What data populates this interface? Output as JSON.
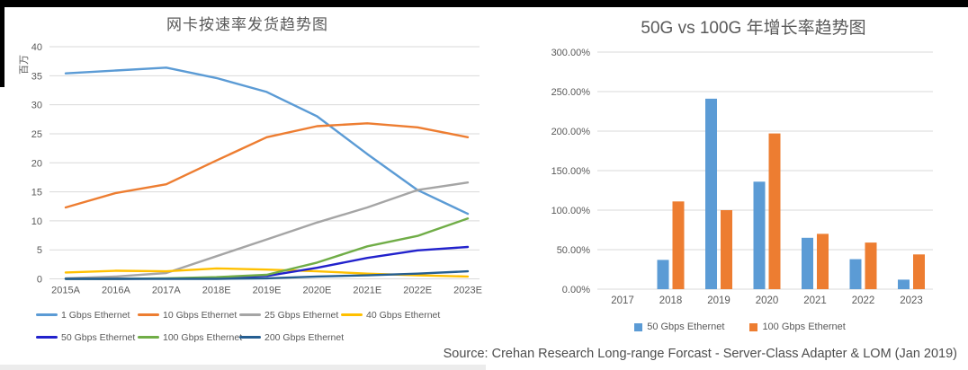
{
  "page": {
    "source_note": "Source: Crehan Research Long-range Forcast - Server-Class Adapter & LOM (Jan 2019)"
  },
  "colors": {
    "grid": "#d9d9d9",
    "axis_text": "#595959",
    "title_text": "#595959",
    "blue_light": "#5B9BD5",
    "orange": "#ED7D31",
    "gray": "#A5A5A5",
    "gold": "#FFC000",
    "blue_deep": "#2222CC",
    "green": "#70AD47",
    "teal_dark": "#255E91"
  },
  "chart_data": [
    {
      "type": "line",
      "title": "网卡按速率发货趋势图",
      "ylabel": "百万",
      "xlabel": "",
      "categories": [
        "2015A",
        "2016A",
        "2017A",
        "2018E",
        "2019E",
        "2020E",
        "2021E",
        "2022E",
        "2023E"
      ],
      "yticks": [
        0,
        5,
        10,
        15,
        20,
        25,
        30,
        35,
        40
      ],
      "ylim": [
        0,
        40
      ],
      "grid": true,
      "legend_position": "bottom-left",
      "series": [
        {
          "name": "1 Gbps Ethernet",
          "color": "#5B9BD5",
          "values": [
            35.4,
            35.9,
            36.4,
            34.6,
            32.2,
            28.0,
            21.5,
            15.3,
            11.2
          ]
        },
        {
          "name": "10 Gbps Ethernet",
          "color": "#ED7D31",
          "values": [
            12.3,
            14.8,
            16.3,
            20.4,
            24.4,
            26.3,
            26.8,
            26.1,
            24.4
          ]
        },
        {
          "name": "25 Gbps Ethernet",
          "color": "#A5A5A5",
          "values": [
            0.1,
            0.4,
            1.0,
            3.9,
            6.8,
            9.7,
            12.3,
            15.3,
            16.6
          ]
        },
        {
          "name": "40 Gbps Ethernet",
          "color": "#FFC000",
          "values": [
            1.1,
            1.4,
            1.3,
            1.8,
            1.6,
            1.3,
            0.9,
            0.6,
            0.4
          ]
        },
        {
          "name": "50 Gbps Ethernet",
          "color": "#2222CC",
          "values": [
            0,
            0,
            0.05,
            0.15,
            0.5,
            1.9,
            3.6,
            4.9,
            5.5
          ]
        },
        {
          "name": "100 Gbps Ethernet",
          "color": "#70AD47",
          "values": [
            0,
            0,
            0.1,
            0.3,
            0.7,
            2.8,
            5.6,
            7.4,
            10.4
          ]
        },
        {
          "name": "200 Gbps Ethernet",
          "color": "#255E91",
          "values": [
            0,
            0,
            0,
            0,
            0.1,
            0.4,
            0.6,
            0.9,
            1.3
          ]
        }
      ]
    },
    {
      "type": "bar",
      "title": "50G vs 100G 年增长率趋势图",
      "xlabel": "",
      "ylabel": "",
      "categories": [
        "2017",
        "2018",
        "2019",
        "2020",
        "2021",
        "2022",
        "2023"
      ],
      "yticks": [
        0,
        50,
        100,
        150,
        200,
        250,
        300
      ],
      "ytick_labels": [
        "0.00%",
        "50.00%",
        "100.00%",
        "150.00%",
        "200.00%",
        "250.00%",
        "300.00%"
      ],
      "ylim": [
        0,
        300
      ],
      "grid": true,
      "legend_position": "bottom-center",
      "series": [
        {
          "name": "50 Gbps Ethernet",
          "color": "#5B9BD5",
          "values": [
            0,
            37,
            241,
            136,
            65,
            38,
            12
          ]
        },
        {
          "name": "100 Gbps Ethernet",
          "color": "#ED7D31",
          "values": [
            0,
            111,
            100,
            197,
            70,
            59,
            44
          ]
        }
      ]
    }
  ]
}
